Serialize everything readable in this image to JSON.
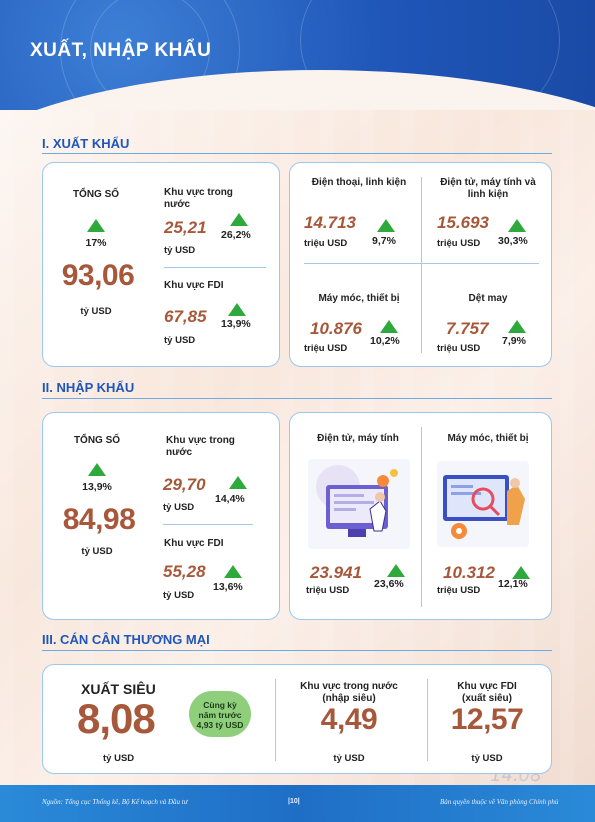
{
  "header": {
    "title": "XUẤT, NHẬP KHẨU"
  },
  "export": {
    "section_title": "I. XUẤT KHẨU",
    "total": {
      "label": "TỔNG SỐ",
      "change": "17%",
      "value": "93,06",
      "unit": "tỷ USD"
    },
    "domestic": {
      "label": "Khu vực trong nước",
      "value": "25,21",
      "unit": "tỷ USD",
      "change": "26,2%"
    },
    "fdi": {
      "label": "Khu vực FDI",
      "value": "67,85",
      "unit": "tỷ USD",
      "change": "13,9%"
    },
    "products": [
      {
        "label": "Điện thoại, linh kiện",
        "value": "14.713",
        "unit": "triệu USD",
        "change": "9,7%"
      },
      {
        "label": "Điện tử, máy tính và linh kiện",
        "value": "15.693",
        "unit": "triệu USD",
        "change": "30,3%"
      },
      {
        "label": "Máy móc, thiết bị",
        "value": "10.876",
        "unit": "triệu USD",
        "change": "10,2%"
      },
      {
        "label": "Dệt may",
        "value": "7.757",
        "unit": "triệu USD",
        "change": "7,9%"
      }
    ]
  },
  "import": {
    "section_title": "II. NHẬP KHẨU",
    "total": {
      "label": "TỔNG SỐ",
      "change": "13,9%",
      "value": "84,98",
      "unit": "tỷ USD"
    },
    "domestic": {
      "label": "Khu vực trong nước",
      "value": "29,70",
      "unit": "tỷ USD",
      "change": "14,4%"
    },
    "fdi": {
      "label": "Khu vực FDI",
      "value": "55,28",
      "unit": "tỷ USD",
      "change": "13,6%"
    },
    "products": [
      {
        "label": "Điện tử, máy tính",
        "value": "23.941",
        "unit": "triệu USD",
        "change": "23,6%"
      },
      {
        "label": "Máy móc, thiết bị",
        "value": "10.312",
        "unit": "triệu USD",
        "change": "12,1%"
      }
    ]
  },
  "trade_balance": {
    "section_title": "III. CÁN CÂN THƯƠNG MẠI",
    "surplus": {
      "label": "XUẤT SIÊU",
      "value": "8,08",
      "unit": "tỷ USD"
    },
    "same_period": {
      "line1": "Cùng kỳ",
      "line2": "năm trước",
      "line3": "4,93 tỷ USD"
    },
    "domestic": {
      "label_line1": "Khu vực trong nước",
      "label_line2": "(nhập siêu)",
      "value": "4,49",
      "unit": "tỷ USD"
    },
    "fdi": {
      "label_line1": "Khu vực FDI",
      "label_line2": "(xuất siêu)",
      "value": "12,57",
      "unit": "tỷ USD"
    }
  },
  "footer": {
    "source": "Nguồn: Tổng cục Thống kê, Bộ Kế hoạch và Đầu tư",
    "page": "|10|",
    "copyright": "Bản quyền thuộc về Văn phòng Chính phủ"
  },
  "colors": {
    "accent": "#1f56b8",
    "value": "#a8583a",
    "up": "#2eaa3c",
    "badge": "#8fcf7c"
  }
}
